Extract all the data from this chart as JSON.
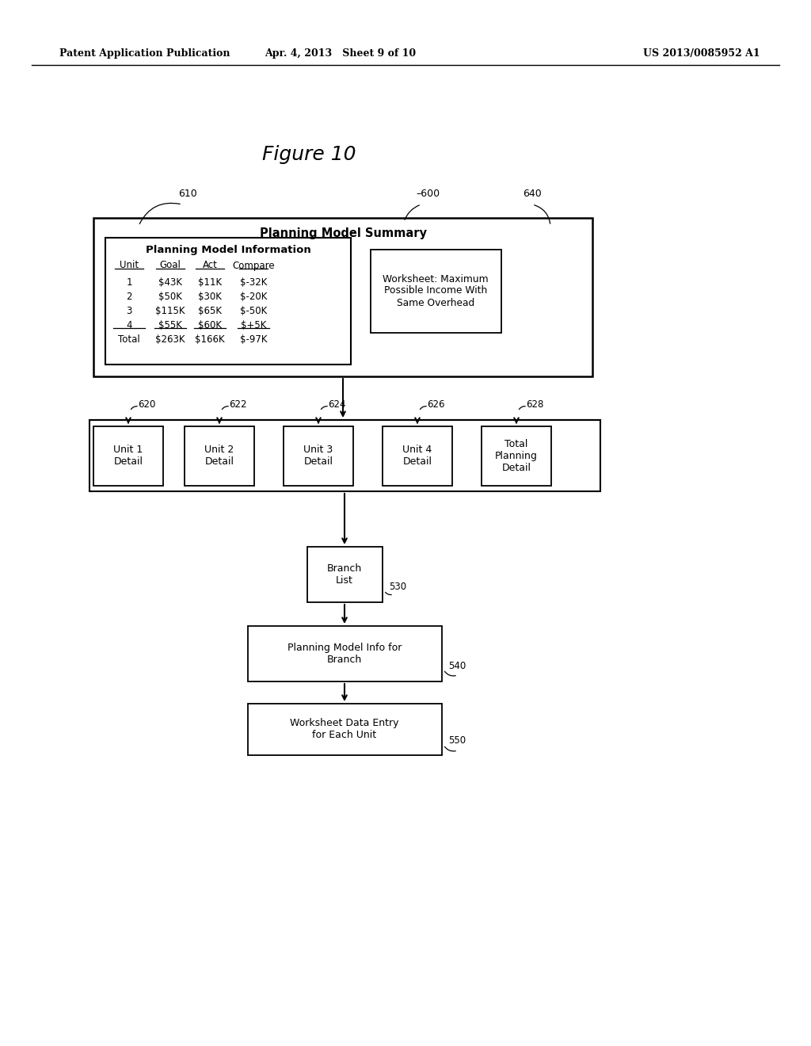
{
  "header_left": "Patent Application Publication",
  "header_mid": "Apr. 4, 2013   Sheet 9 of 10",
  "header_right": "US 2013/0085952 A1",
  "figure_title": "Figure 10",
  "table_headers": [
    "Unit",
    "Goal",
    "Act",
    "Compare"
  ],
  "table_rows": [
    [
      "1",
      "$43K",
      "$11K",
      "$-32K"
    ],
    [
      "2",
      "$50K",
      "$30K",
      "$-20K"
    ],
    [
      "3",
      "$115K",
      "$65K",
      "$-50K"
    ],
    [
      "4",
      "$55K",
      "$60K",
      "$+5K"
    ],
    [
      "Total",
      "$263K",
      "$166K",
      "$-97K"
    ]
  ],
  "bg_color": "#ffffff"
}
